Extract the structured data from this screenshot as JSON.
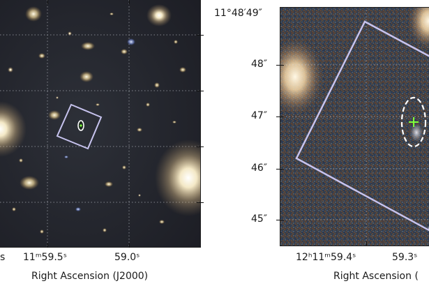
{
  "left_panel": {
    "x_ticks": [
      "11ᵐ59.5ˢ",
      "59.0ˢ"
    ],
    "x_tick_partial_left": "s",
    "x_axis_label": "Right Ascension (J2000)"
  },
  "right_panel": {
    "y_ticks": [
      "11°48′49″",
      "48″",
      "47″",
      "46″",
      "45″"
    ],
    "x_ticks": [
      "12ʰ11ᵐ59.4ˢ",
      "59.3ˢ"
    ],
    "x_axis_label": "Right Ascension ("
  },
  "colors": {
    "background_sky": "#1f2028",
    "rectangle_overlay": "#c7c3ee",
    "ellipse_overlay": "#ffffff",
    "cross_marker": "#7dff3a",
    "star_glow": "#fff6dc"
  }
}
